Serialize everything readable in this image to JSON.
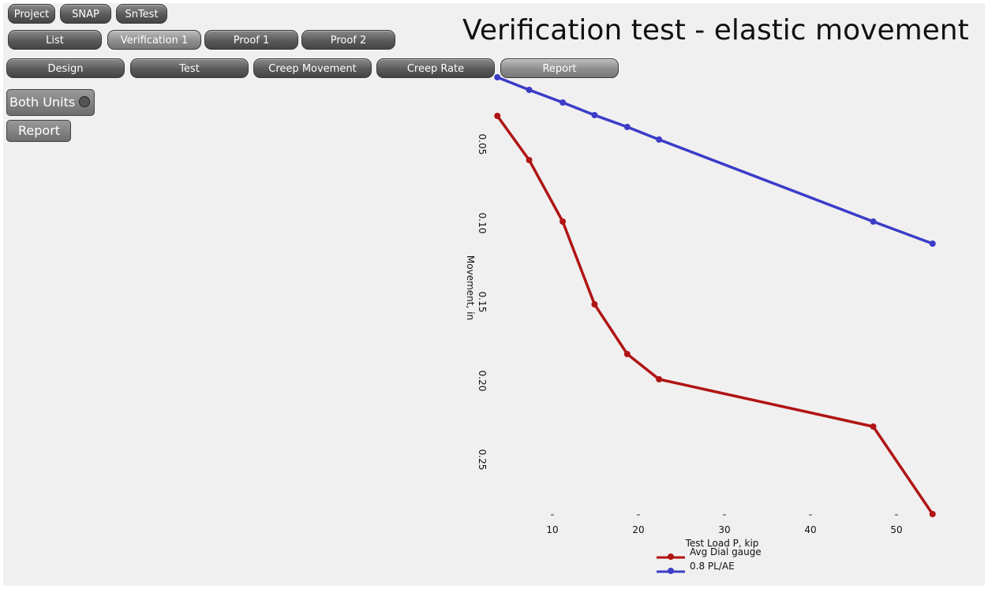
{
  "ui": {
    "top_tabs": [
      "Project",
      "SNAP",
      "SnTest"
    ],
    "section_tabs": [
      "List",
      "Verification 1",
      "Proof 1",
      "Proof 2"
    ],
    "view_tabs": [
      "Design",
      "Test",
      "Creep Movement",
      "Creep Rate",
      "Report"
    ],
    "options": {
      "both_units": "Both Units",
      "report": "Report"
    }
  },
  "chart_data": {
    "type": "line",
    "title": "Verification test - elastic movement",
    "x_label": "Test Load P, kip",
    "y_label": "Movement, in",
    "y_inverted": true,
    "grid": false,
    "legend": "bottom",
    "xlim": [
      3,
      55
    ],
    "ylim": [
      0.005,
      0.29
    ],
    "xticks": [
      10,
      20,
      30,
      40,
      50
    ],
    "yticks": [
      0.05,
      {
        "value": 0.1,
        "label": "0.10"
      },
      0.15,
      {
        "value": 0.2,
        "label": "0.20"
      },
      0.25
    ],
    "x": [
      3.6,
      7.3,
      11.2,
      14.9,
      18.7,
      22.4,
      47.3,
      54.2
    ],
    "series": [
      {
        "name": "Avg Dial gauge",
        "color": "#b01414",
        "values": [
          0.032,
          0.06,
          0.099,
          0.1515,
          0.183,
          0.199,
          0.229,
          0.2845
        ]
      },
      {
        "name": "0.8 PL/AE",
        "color": "#3c3cc8",
        "values": [
          0.0075,
          0.0155,
          0.0235,
          0.0315,
          0.039,
          0.047,
          0.099,
          0.113
        ]
      }
    ]
  }
}
